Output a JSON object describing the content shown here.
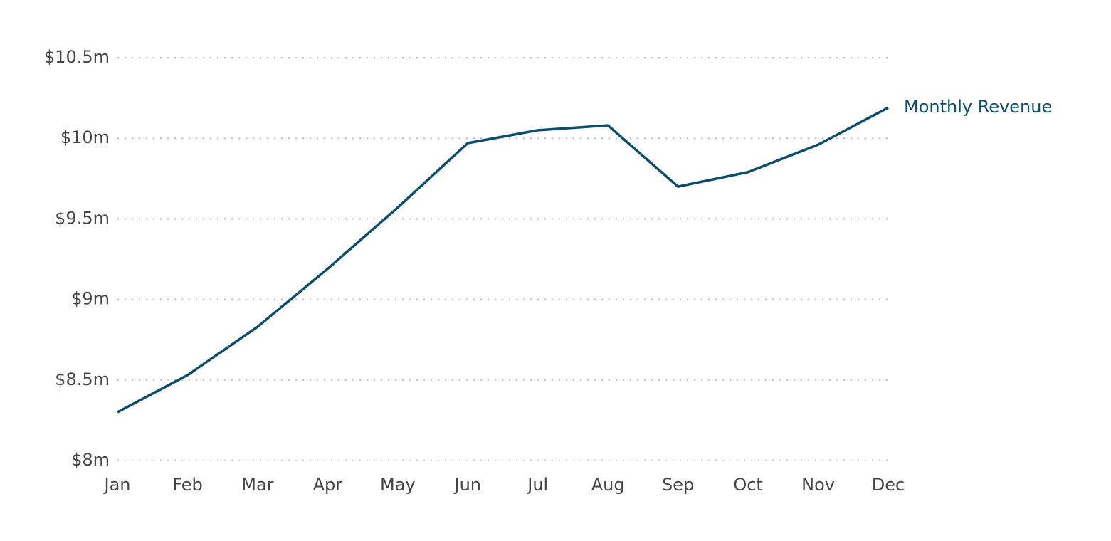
{
  "chart_data": {
    "type": "line",
    "categories": [
      "Jan",
      "Feb",
      "Mar",
      "Apr",
      "May",
      "Jun",
      "Jul",
      "Aug",
      "Sep",
      "Oct",
      "Nov",
      "Dec"
    ],
    "series": [
      {
        "name": "Monthly Revenue",
        "color": "#0b4d6a",
        "values": [
          8.3,
          8.53,
          8.83,
          9.19,
          9.57,
          9.97,
          10.05,
          10.08,
          9.7,
          9.79,
          9.96,
          10.19
        ]
      }
    ],
    "ylim": [
      8,
      10.5
    ],
    "yticks": [
      {
        "value": 8,
        "label": "$8m"
      },
      {
        "value": 8.5,
        "label": "$8.5m"
      },
      {
        "value": 9,
        "label": "$9m"
      },
      {
        "value": 9.5,
        "label": "$9.5m"
      },
      {
        "value": 10,
        "label": "$10m"
      },
      {
        "value": 10.5,
        "label": "$10.5m"
      }
    ],
    "grid": true
  }
}
